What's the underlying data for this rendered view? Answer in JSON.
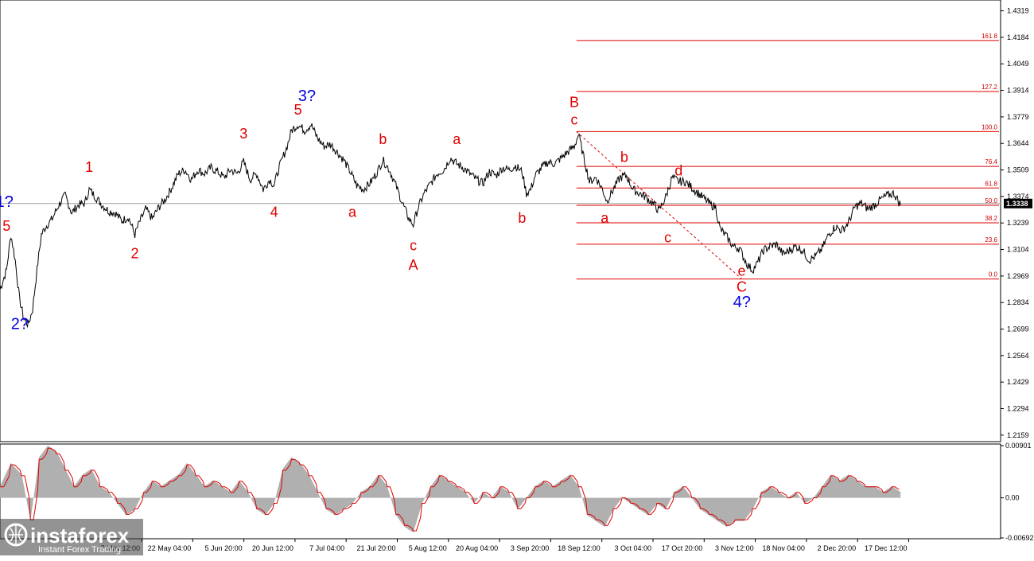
{
  "chart_data": {
    "type": "line",
    "instrument_price_current": "1.3338",
    "price_axis": {
      "ticks": [
        "1.4319",
        "1.4184",
        "1.4049",
        "1.3914",
        "1.3779",
        "1.3644",
        "1.3509",
        "1.3374",
        "1.3239",
        "1.3104",
        "1.2969",
        "1.2834",
        "1.2699",
        "1.2564",
        "1.2429",
        "1.2294",
        "1.2159"
      ],
      "range": [
        1.2134,
        1.437
      ]
    },
    "time_axis": {
      "ticks": [
        "7 May 12:00",
        "22 May 04:00",
        "5 Jun 20:00",
        "20 Jun 12:00",
        "7 Jul 04:00",
        "21 Jul 20:00",
        "5 Aug 12:00",
        "20 Aug 04:00",
        "3 Sep 20:00",
        "18 Sep 12:00",
        "3 Oct 04:00",
        "17 Oct 20:00",
        "3 Nov 12:00",
        "18 Nov 04:00",
        "2 Dec 20:00",
        "17 Dec 12:00"
      ],
      "range_index": [
        0,
        460
      ]
    },
    "price_series": [
      [
        0,
        1.29
      ],
      [
        3,
        1.3
      ],
      [
        5,
        1.318
      ],
      [
        7,
        1.305
      ],
      [
        9,
        1.285
      ],
      [
        11,
        1.275
      ],
      [
        13,
        1.272
      ],
      [
        15,
        1.28
      ],
      [
        17,
        1.3
      ],
      [
        19,
        1.318
      ],
      [
        21,
        1.322
      ],
      [
        24,
        1.326
      ],
      [
        27,
        1.333
      ],
      [
        30,
        1.338
      ],
      [
        33,
        1.329
      ],
      [
        36,
        1.333
      ],
      [
        39,
        1.334
      ],
      [
        41,
        1.341
      ],
      [
        44,
        1.337
      ],
      [
        47,
        1.333
      ],
      [
        50,
        1.33
      ],
      [
        53,
        1.329
      ],
      [
        56,
        1.325
      ],
      [
        59,
        1.327
      ],
      [
        62,
        1.318
      ],
      [
        64,
        1.324
      ],
      [
        67,
        1.331
      ],
      [
        70,
        1.326
      ],
      [
        73,
        1.332
      ],
      [
        76,
        1.336
      ],
      [
        79,
        1.342
      ],
      [
        82,
        1.349
      ],
      [
        85,
        1.351
      ],
      [
        88,
        1.346
      ],
      [
        91,
        1.351
      ],
      [
        94,
        1.349
      ],
      [
        97,
        1.352
      ],
      [
        100,
        1.35
      ],
      [
        103,
        1.347
      ],
      [
        106,
        1.351
      ],
      [
        109,
        1.349
      ],
      [
        112,
        1.355
      ],
      [
        115,
        1.346
      ],
      [
        118,
        1.349
      ],
      [
        121,
        1.341
      ],
      [
        124,
        1.346
      ],
      [
        126,
        1.343
      ],
      [
        128,
        1.351
      ],
      [
        130,
        1.357
      ],
      [
        132,
        1.363
      ],
      [
        134,
        1.371
      ],
      [
        137,
        1.374
      ],
      [
        140,
        1.371
      ],
      [
        143,
        1.374
      ],
      [
        146,
        1.367
      ],
      [
        149,
        1.363
      ],
      [
        152,
        1.364
      ],
      [
        155,
        1.36
      ],
      [
        158,
        1.356
      ],
      [
        161,
        1.35
      ],
      [
        164,
        1.343
      ],
      [
        167,
        1.341
      ],
      [
        170,
        1.344
      ],
      [
        173,
        1.349
      ],
      [
        176,
        1.356
      ],
      [
        179,
        1.351
      ],
      [
        182,
        1.343
      ],
      [
        185,
        1.334
      ],
      [
        188,
        1.326
      ],
      [
        190,
        1.323
      ],
      [
        192,
        1.331
      ],
      [
        195,
        1.339
      ],
      [
        198,
        1.344
      ],
      [
        201,
        1.349
      ],
      [
        204,
        1.351
      ],
      [
        207,
        1.357
      ],
      [
        210,
        1.354
      ],
      [
        213,
        1.352
      ],
      [
        216,
        1.349
      ],
      [
        219,
        1.346
      ],
      [
        222,
        1.344
      ],
      [
        225,
        1.35
      ],
      [
        228,
        1.348
      ],
      [
        231,
        1.352
      ],
      [
        234,
        1.351
      ],
      [
        237,
        1.353
      ],
      [
        240,
        1.35
      ],
      [
        242,
        1.339
      ],
      [
        244,
        1.341
      ],
      [
        246,
        1.348
      ],
      [
        249,
        1.352
      ],
      [
        252,
        1.355
      ],
      [
        255,
        1.354
      ],
      [
        258,
        1.357
      ],
      [
        261,
        1.36
      ],
      [
        264,
        1.363
      ],
      [
        266,
        1.369
      ],
      [
        268,
        1.359
      ],
      [
        271,
        1.345
      ],
      [
        274,
        1.347
      ],
      [
        277,
        1.341
      ],
      [
        279,
        1.335
      ],
      [
        282,
        1.341
      ],
      [
        285,
        1.347
      ],
      [
        288,
        1.348
      ],
      [
        291,
        1.341
      ],
      [
        294,
        1.339
      ],
      [
        297,
        1.337
      ],
      [
        300,
        1.334
      ],
      [
        303,
        1.33
      ],
      [
        306,
        1.337
      ],
      [
        309,
        1.347
      ],
      [
        312,
        1.345
      ],
      [
        315,
        1.345
      ],
      [
        318,
        1.342
      ],
      [
        321,
        1.339
      ],
      [
        324,
        1.336
      ],
      [
        327,
        1.333
      ],
      [
        329,
        1.332
      ],
      [
        331,
        1.321
      ],
      [
        334,
        1.317
      ],
      [
        337,
        1.312
      ],
      [
        340,
        1.311
      ],
      [
        342,
        1.306
      ],
      [
        344,
        1.302
      ],
      [
        346,
        1.3
      ],
      [
        348,
        1.303
      ],
      [
        351,
        1.31
      ],
      [
        354,
        1.312
      ],
      [
        357,
        1.313
      ],
      [
        360,
        1.308
      ],
      [
        363,
        1.31
      ],
      [
        366,
        1.312
      ],
      [
        369,
        1.31
      ],
      [
        372,
        1.305
      ],
      [
        375,
        1.307
      ],
      [
        378,
        1.311
      ],
      [
        381,
        1.318
      ],
      [
        384,
        1.322
      ],
      [
        387,
        1.32
      ],
      [
        390,
        1.324
      ],
      [
        393,
        1.332
      ],
      [
        396,
        1.334
      ],
      [
        399,
        1.331
      ],
      [
        402,
        1.333
      ],
      [
        405,
        1.336
      ],
      [
        408,
        1.338
      ],
      [
        411,
        1.339
      ],
      [
        414,
        1.333
      ]
    ],
    "fibonacci_levels": [
      {
        "label": "161.8",
        "price": 1.4168
      },
      {
        "label": "127.2",
        "price": 1.3908
      },
      {
        "label": "100.0",
        "price": 1.3704
      },
      {
        "label": "76.4",
        "price": 1.3527
      },
      {
        "label": "61.8",
        "price": 1.3417
      },
      {
        "label": "50.0",
        "price": 1.3329
      },
      {
        "label": "38.2",
        "price": 1.324
      },
      {
        "label": "23.6",
        "price": 1.3131
      },
      {
        "label": "0.0",
        "price": 1.2954
      }
    ],
    "wave_labels_red": [
      {
        "text": "5",
        "x": 3,
        "price": 1.32
      },
      {
        "text": "1",
        "x": 41,
        "price": 1.35
      },
      {
        "text": "2",
        "x": 62,
        "price": 1.306
      },
      {
        "text": "3",
        "x": 112,
        "price": 1.367
      },
      {
        "text": "5",
        "x": 137,
        "price": 1.379
      },
      {
        "text": "4",
        "x": 126,
        "price": 1.327
      },
      {
        "text": "a",
        "x": 162,
        "price": 1.327
      },
      {
        "text": "b",
        "x": 176,
        "price": 1.364
      },
      {
        "text": "c",
        "x": 190,
        "price": 1.31
      },
      {
        "text": "A",
        "x": 190,
        "price": 1.3
      },
      {
        "text": "a",
        "x": 210,
        "price": 1.364
      },
      {
        "text": "b",
        "x": 240,
        "price": 1.324
      },
      {
        "text": "B",
        "x": 264,
        "price": 1.383
      },
      {
        "text": "c",
        "x": 264,
        "price": 1.374
      },
      {
        "text": "a",
        "x": 278,
        "price": 1.324
      },
      {
        "text": "b",
        "x": 287,
        "price": 1.355
      },
      {
        "text": "c",
        "x": 307,
        "price": 1.314
      },
      {
        "text": "d",
        "x": 312,
        "price": 1.348
      },
      {
        "text": "e",
        "x": 341,
        "price": 1.297
      },
      {
        "text": "C",
        "x": 341,
        "price": 1.289
      }
    ],
    "wave_labels_blue": [
      {
        "text": "1?",
        "x": 1,
        "price": 1.332
      },
      {
        "text": "2?",
        "x": 8,
        "price": 1.27
      },
      {
        "text": "3?",
        "x": 140,
        "price": 1.386
      },
      {
        "text": "4?",
        "x": 340,
        "price": 1.281
      }
    ],
    "oscillator": {
      "ticks": [
        "0.00901",
        "0.00",
        "-0.00692"
      ],
      "range": [
        -0.00692,
        0.00901
      ],
      "zero": 0.0,
      "histogram": [
        [
          0,
          0.002
        ],
        [
          5,
          0.006
        ],
        [
          10,
          0.004
        ],
        [
          14,
          -0.004
        ],
        [
          18,
          0.007
        ],
        [
          22,
          0.009
        ],
        [
          26,
          0.008
        ],
        [
          30,
          0.005
        ],
        [
          34,
          0.002
        ],
        [
          38,
          0.004
        ],
        [
          42,
          0.005
        ],
        [
          46,
          0.002
        ],
        [
          50,
          0.001
        ],
        [
          54,
          -0.001
        ],
        [
          58,
          -0.003
        ],
        [
          62,
          -0.002
        ],
        [
          66,
          0.001
        ],
        [
          70,
          0.003
        ],
        [
          74,
          0.002
        ],
        [
          78,
          0.003
        ],
        [
          82,
          0.004
        ],
        [
          86,
          0.006
        ],
        [
          90,
          0.004
        ],
        [
          94,
          0.002
        ],
        [
          98,
          0.003
        ],
        [
          102,
          0.002
        ],
        [
          106,
          0.001
        ],
        [
          110,
          0.003
        ],
        [
          114,
          0.001
        ],
        [
          118,
          -0.002
        ],
        [
          122,
          -0.003
        ],
        [
          126,
          -0.001
        ],
        [
          130,
          0.005
        ],
        [
          134,
          0.007
        ],
        [
          138,
          0.006
        ],
        [
          142,
          0.004
        ],
        [
          146,
          0.001
        ],
        [
          150,
          -0.002
        ],
        [
          154,
          -0.003
        ],
        [
          158,
          -0.002
        ],
        [
          162,
          -0.001
        ],
        [
          166,
          0.001
        ],
        [
          170,
          0.002
        ],
        [
          174,
          0.004
        ],
        [
          178,
          0.002
        ],
        [
          182,
          -0.003
        ],
        [
          186,
          -0.005
        ],
        [
          190,
          -0.006
        ],
        [
          194,
          -0.001
        ],
        [
          198,
          0.002
        ],
        [
          202,
          0.004
        ],
        [
          206,
          0.003
        ],
        [
          210,
          0.002
        ],
        [
          214,
          0.001
        ],
        [
          218,
          -0.001
        ],
        [
          222,
          0.001
        ],
        [
          226,
          0.0
        ],
        [
          230,
          0.002
        ],
        [
          234,
          0.001
        ],
        [
          238,
          -0.002
        ],
        [
          242,
          0.0
        ],
        [
          246,
          0.002
        ],
        [
          250,
          0.003
        ],
        [
          254,
          0.002
        ],
        [
          258,
          0.003
        ],
        [
          262,
          0.004
        ],
        [
          266,
          0.002
        ],
        [
          270,
          -0.003
        ],
        [
          274,
          -0.004
        ],
        [
          278,
          -0.005
        ],
        [
          282,
          -0.002
        ],
        [
          286,
          0.0
        ],
        [
          290,
          -0.001
        ],
        [
          294,
          -0.002
        ],
        [
          298,
          -0.003
        ],
        [
          302,
          -0.001
        ],
        [
          306,
          -0.002
        ],
        [
          310,
          0.001
        ],
        [
          314,
          0.002
        ],
        [
          318,
          0.0
        ],
        [
          322,
          -0.002
        ],
        [
          326,
          -0.003
        ],
        [
          330,
          -0.004
        ],
        [
          334,
          -0.005
        ],
        [
          338,
          -0.004
        ],
        [
          342,
          -0.004
        ],
        [
          346,
          -0.002
        ],
        [
          350,
          0.001
        ],
        [
          354,
          0.002
        ],
        [
          358,
          0.001
        ],
        [
          362,
          0.0
        ],
        [
          366,
          0.001
        ],
        [
          370,
          -0.001
        ],
        [
          374,
          0.0
        ],
        [
          378,
          0.002
        ],
        [
          382,
          0.004
        ],
        [
          386,
          0.003
        ],
        [
          390,
          0.004
        ],
        [
          394,
          0.003
        ],
        [
          398,
          0.002
        ],
        [
          402,
          0.002
        ],
        [
          406,
          0.001
        ],
        [
          410,
          0.002
        ],
        [
          414,
          0.001
        ]
      ]
    },
    "colors": {
      "price_line": "#000000",
      "fib_line": "#e00000",
      "wave_red": "#e00000",
      "wave_blue": "#0000e0",
      "osc_hist": "#b0b0b0",
      "osc_signal": "#e00000",
      "current_price_bg": "#000000"
    }
  },
  "branding": {
    "logo_name": "instaforex",
    "logo_tagline": "Instant Forex Trading"
  }
}
